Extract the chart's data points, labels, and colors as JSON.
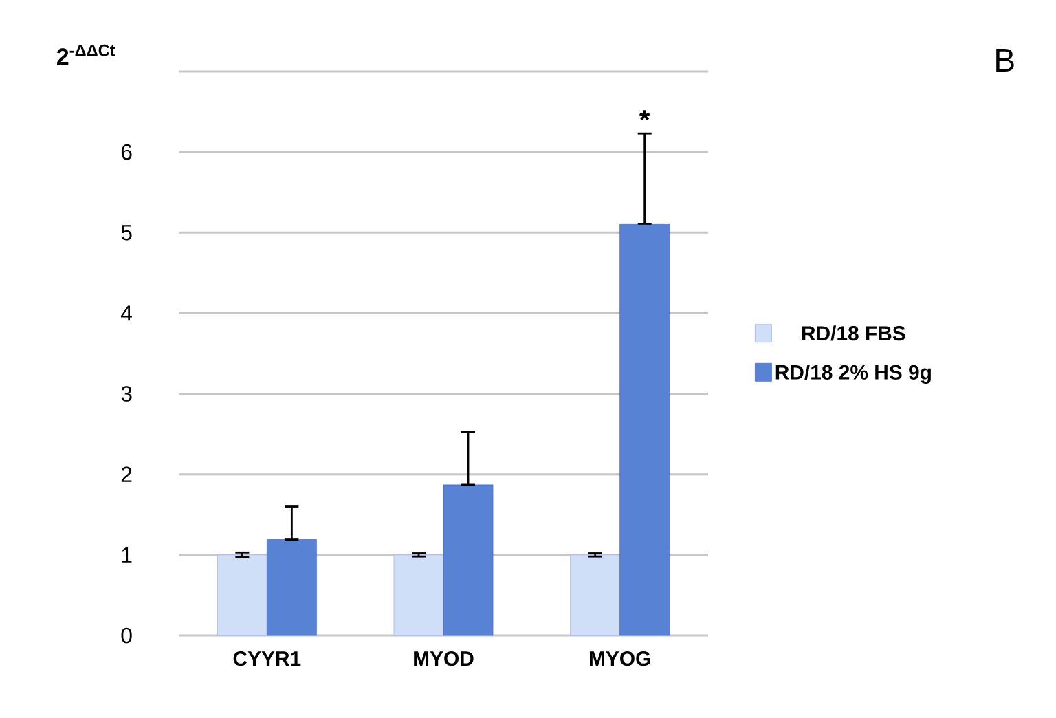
{
  "chart_data": {
    "type": "bar",
    "ylabel": "2$^{-ΔΔCt}$",
    "categories": [
      "CYYR1",
      "MYOD",
      "MYOG"
    ],
    "series": [
      {
        "name": "RD/18 FBS",
        "color": "#cfdff7",
        "values": [
          1.0,
          1.0,
          1.0
        ],
        "errors": [
          0.03,
          0.02,
          0.02
        ]
      },
      {
        "name": "RD/18 2% HS 9g",
        "color": "#5883d5",
        "values": [
          1.19,
          1.87,
          5.11
        ],
        "errors": [
          [
            1.19,
            1.6
          ],
          [
            1.87,
            2.53
          ],
          [
            5.11,
            6.23
          ]
        ]
      }
    ],
    "ylim": [
      0,
      7
    ],
    "yticks": [
      0,
      1,
      2,
      3,
      4,
      5,
      6,
      {
        "value": 7,
        "label": null
      }
    ],
    "grid": "y",
    "legend": "right",
    "annotations": [
      "B",
      "*"
    ]
  }
}
